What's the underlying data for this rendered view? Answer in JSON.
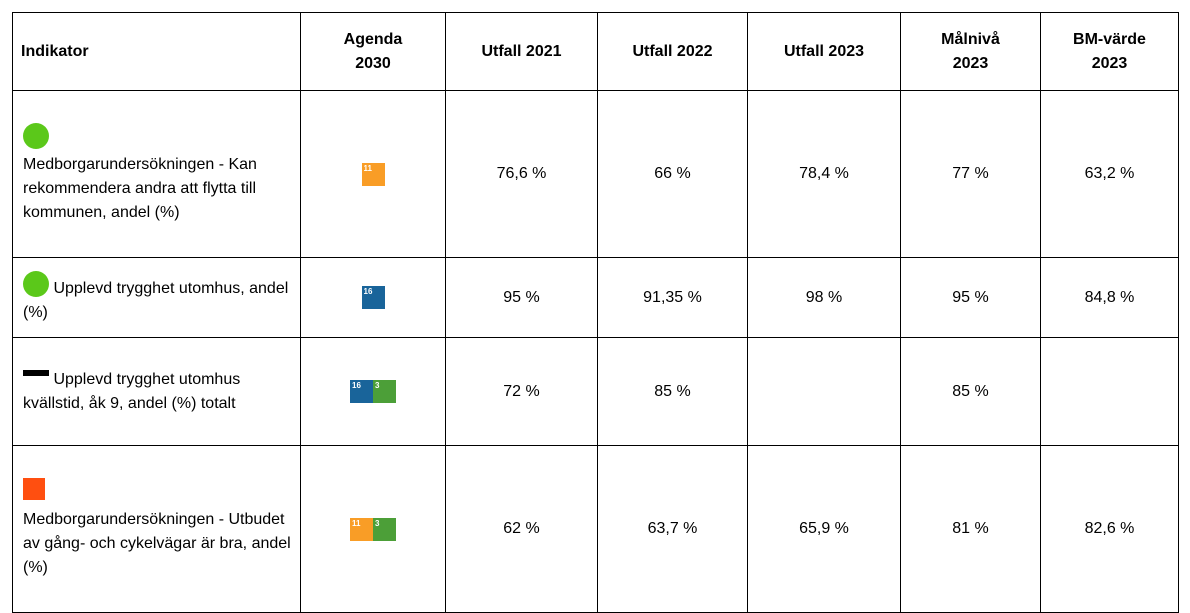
{
  "table": {
    "header": [
      "Indikator",
      "Agenda 2030",
      "Utfall 2021",
      "Utfall 2022",
      "Utfall 2023",
      "Målnivå 2023",
      "BM-värde 2023"
    ],
    "rows": [
      {
        "indicator": "Medborgarundersökningen - Kan rekommendera andra att flytta till kommunen, andel (%)",
        "sdg": [
          "11"
        ],
        "values": [
          "76,6 %",
          "66 %",
          "78,4 %",
          "77 %",
          "63,2 %"
        ]
      },
      {
        "indicator": "Upplevd trygghet utomhus, andel (%)",
        "sdg": [
          "16"
        ],
        "values": [
          "95 %",
          "91,35 %",
          "98 %",
          "95 %",
          "84,8 %"
        ]
      },
      {
        "indicator": "Upplevd trygghet utomhus kvällstid, åk 9, andel (%) totalt",
        "sdg": [
          "16",
          "3"
        ],
        "values": [
          "72 %",
          "85 %",
          null,
          "85 %",
          null
        ]
      },
      {
        "indicator": "Medborgarundersökningen - Utbudet av gång- och cykelvägar är bra, andel (%)",
        "sdg": [
          "11",
          "3"
        ],
        "values": [
          "62 %",
          "63,7 %",
          "65,9 %",
          "81 %",
          "82,6 %"
        ]
      }
    ]
  }
}
